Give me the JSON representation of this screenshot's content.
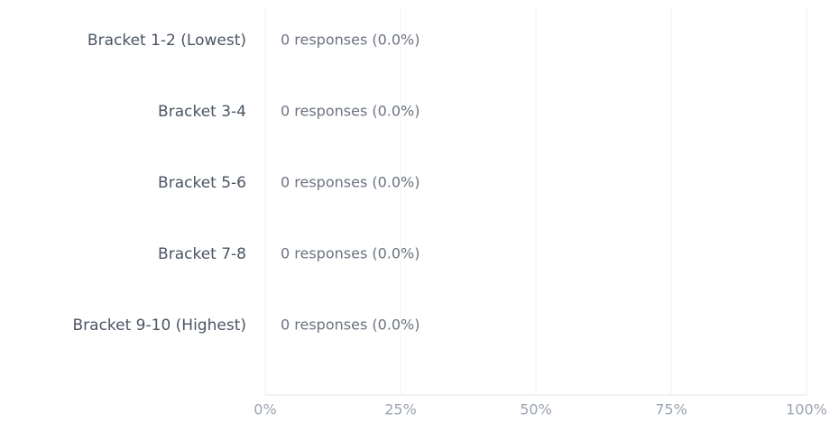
{
  "chart_data": {
    "type": "barh",
    "categories": [
      "Bracket 1-2 (Lowest)",
      "Bracket 3-4",
      "Bracket 5-6",
      "Bracket 7-8",
      "Bracket 9-10 (Highest)"
    ],
    "values": [
      0,
      0,
      0,
      0,
      0
    ],
    "value_labels": [
      "0 responses (0.0%)",
      "0 responses (0.0%)",
      "0 responses (0.0%)",
      "0 responses (0.0%)",
      "0 responses (0.0%)"
    ],
    "xlim": [
      0,
      100
    ],
    "xticks": [
      {
        "value": 0,
        "label": "0%"
      },
      {
        "value": 25,
        "label": "25%"
      },
      {
        "value": 50,
        "label": "50%"
      },
      {
        "value": 75,
        "label": "75%"
      },
      {
        "value": 100,
        "label": "100%"
      }
    ],
    "grid": true
  }
}
